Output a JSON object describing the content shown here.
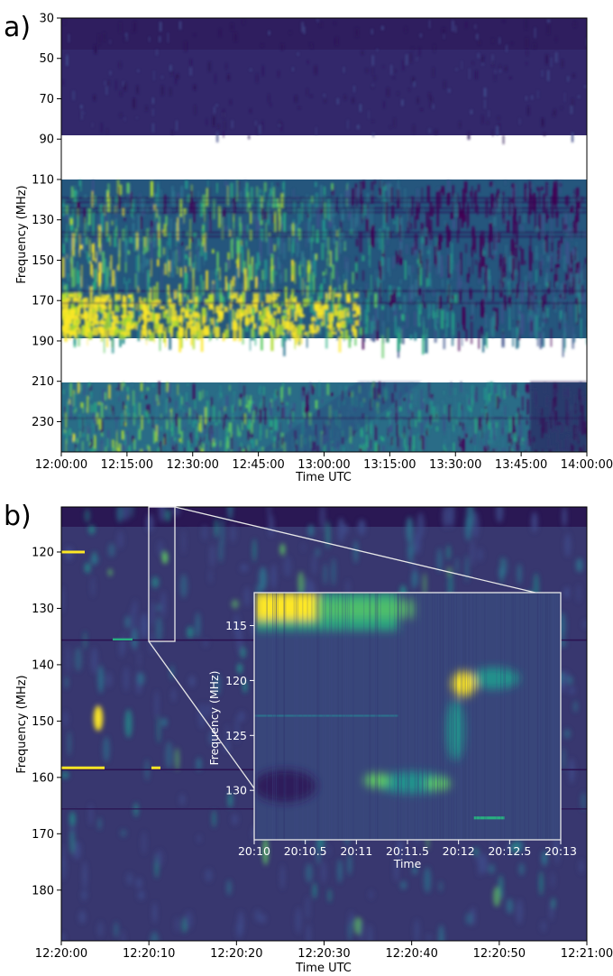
{
  "chart_data": [
    {
      "type": "heatmap",
      "panel_label": "a)",
      "xlabel": "Time UTC",
      "ylabel": "Frequency (MHz)",
      "x_ticks": [
        "12:00:00",
        "12:15:00",
        "12:30:00",
        "12:45:00",
        "13:00:00",
        "13:15:00",
        "13:30:00",
        "13:45:00",
        "14:00:00"
      ],
      "y_ticks": [
        30,
        50,
        70,
        90,
        110,
        130,
        150,
        170,
        190,
        210,
        230
      ],
      "x_range": [
        "12:00:00",
        "14:00:00"
      ],
      "y_range": [
        245,
        30
      ],
      "frequency_bands_with_data_mhz": [
        [
          30,
          89
        ],
        [
          110,
          188
        ],
        [
          210,
          245
        ]
      ],
      "frequency_gaps_mhz": [
        [
          89,
          110
        ],
        [
          188,
          210
        ]
      ],
      "colormap": "viridis",
      "colors": {
        "low": "#35296b",
        "mid": "#21918c",
        "high": "#fde725",
        "gap": "#ffffff"
      }
    },
    {
      "type": "heatmap",
      "panel_label": "b)",
      "xlabel": "Time UTC",
      "ylabel": "Frequency (MHz)",
      "x_ticks": [
        "12:20:00",
        "12:20:10",
        "12:20:20",
        "12:20:30",
        "12:20:40",
        "12:20:50",
        "12:21:00"
      ],
      "y_ticks": [
        120,
        130,
        140,
        150,
        160,
        170,
        180
      ],
      "x_range": [
        "12:20:00",
        "12:21:00"
      ],
      "y_range": [
        189,
        112
      ],
      "zoom_region": {
        "x_range": [
          "12:20:10",
          "12:20:13"
        ],
        "y_range": [
          112,
          134.5
        ]
      },
      "colormap": "viridis",
      "inset": {
        "xlabel": "Time",
        "ylabel": "Frequency (MHz)",
        "x_ticks": [
          "20:10",
          "20:10.5",
          "20:11",
          "20:11.5",
          "20:12",
          "20:12.5",
          "20:13"
        ],
        "y_ticks": [
          115,
          120,
          125,
          130
        ],
        "x_range": [
          "20:10",
          "20:13"
        ],
        "y_range": [
          134.5,
          112
        ]
      }
    }
  ]
}
